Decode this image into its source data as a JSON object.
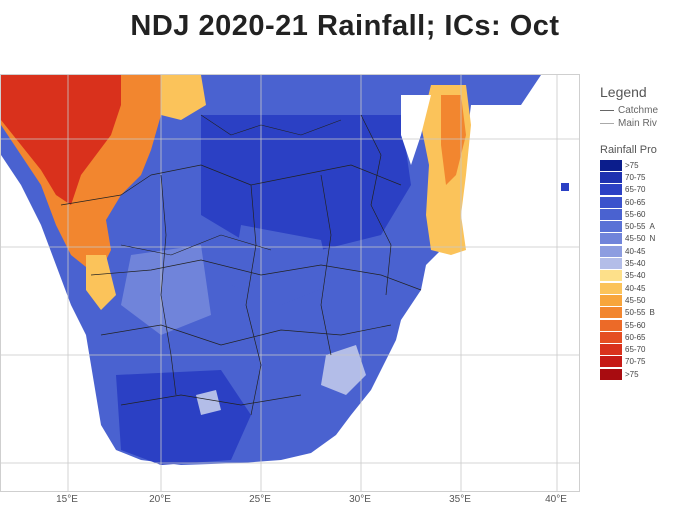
{
  "title": "NDJ 2020-21 Rainfall; ICs: Oct",
  "longitude_labels": [
    "15°E",
    "20°E",
    "25°E",
    "30°E",
    "35°E",
    "40°E"
  ],
  "legend": {
    "title": "Legend",
    "lines": [
      {
        "label": "Catchme"
      },
      {
        "label": "Main Riv"
      }
    ],
    "subtitle": "Rainfall Pro",
    "bins": [
      {
        "label": ">75",
        "color": "#0b1d8c",
        "group": ""
      },
      {
        "label": "70-75",
        "color": "#1e31b0",
        "group": ""
      },
      {
        "label": "65-70",
        "color": "#2b40c4",
        "group": ""
      },
      {
        "label": "60-65",
        "color": "#3b52cc",
        "group": ""
      },
      {
        "label": "55-60",
        "color": "#4a62d0",
        "group": ""
      },
      {
        "label": "50-55",
        "color": "#5a72d6",
        "group": "A"
      },
      {
        "label": "45-50",
        "color": "#7084da",
        "group": "N"
      },
      {
        "label": "40-45",
        "color": "#8d9de0",
        "group": ""
      },
      {
        "label": "35-40",
        "color": "#b3bde8",
        "group": ""
      },
      {
        "label": "35-40",
        "color": "#fde08a",
        "group": ""
      },
      {
        "label": "40-45",
        "color": "#fbc35a",
        "group": ""
      },
      {
        "label": "45-50",
        "color": "#f7a53c",
        "group": ""
      },
      {
        "label": "50-55",
        "color": "#f2862f",
        "group": "B"
      },
      {
        "label": "55-60",
        "color": "#ec6a28",
        "group": ""
      },
      {
        "label": "60-65",
        "color": "#e54e22",
        "group": ""
      },
      {
        "label": "65-70",
        "color": "#d9311c",
        "group": ""
      },
      {
        "label": "70-75",
        "color": "#c61a16",
        "group": ""
      },
      {
        "label": ">75",
        "color": "#a80c10",
        "group": ""
      }
    ]
  },
  "map_colors": {
    "ocean": "#ffffff",
    "blue_dark": "#2b40c4",
    "blue_mid": "#4a62d0",
    "blue_light": "#7084da",
    "blue_pale": "#b3bde8",
    "orange_light": "#fbc35a",
    "orange_mid": "#f2862f",
    "red": "#d9311c",
    "grid": "#c8c8c8",
    "border": "#222222"
  }
}
